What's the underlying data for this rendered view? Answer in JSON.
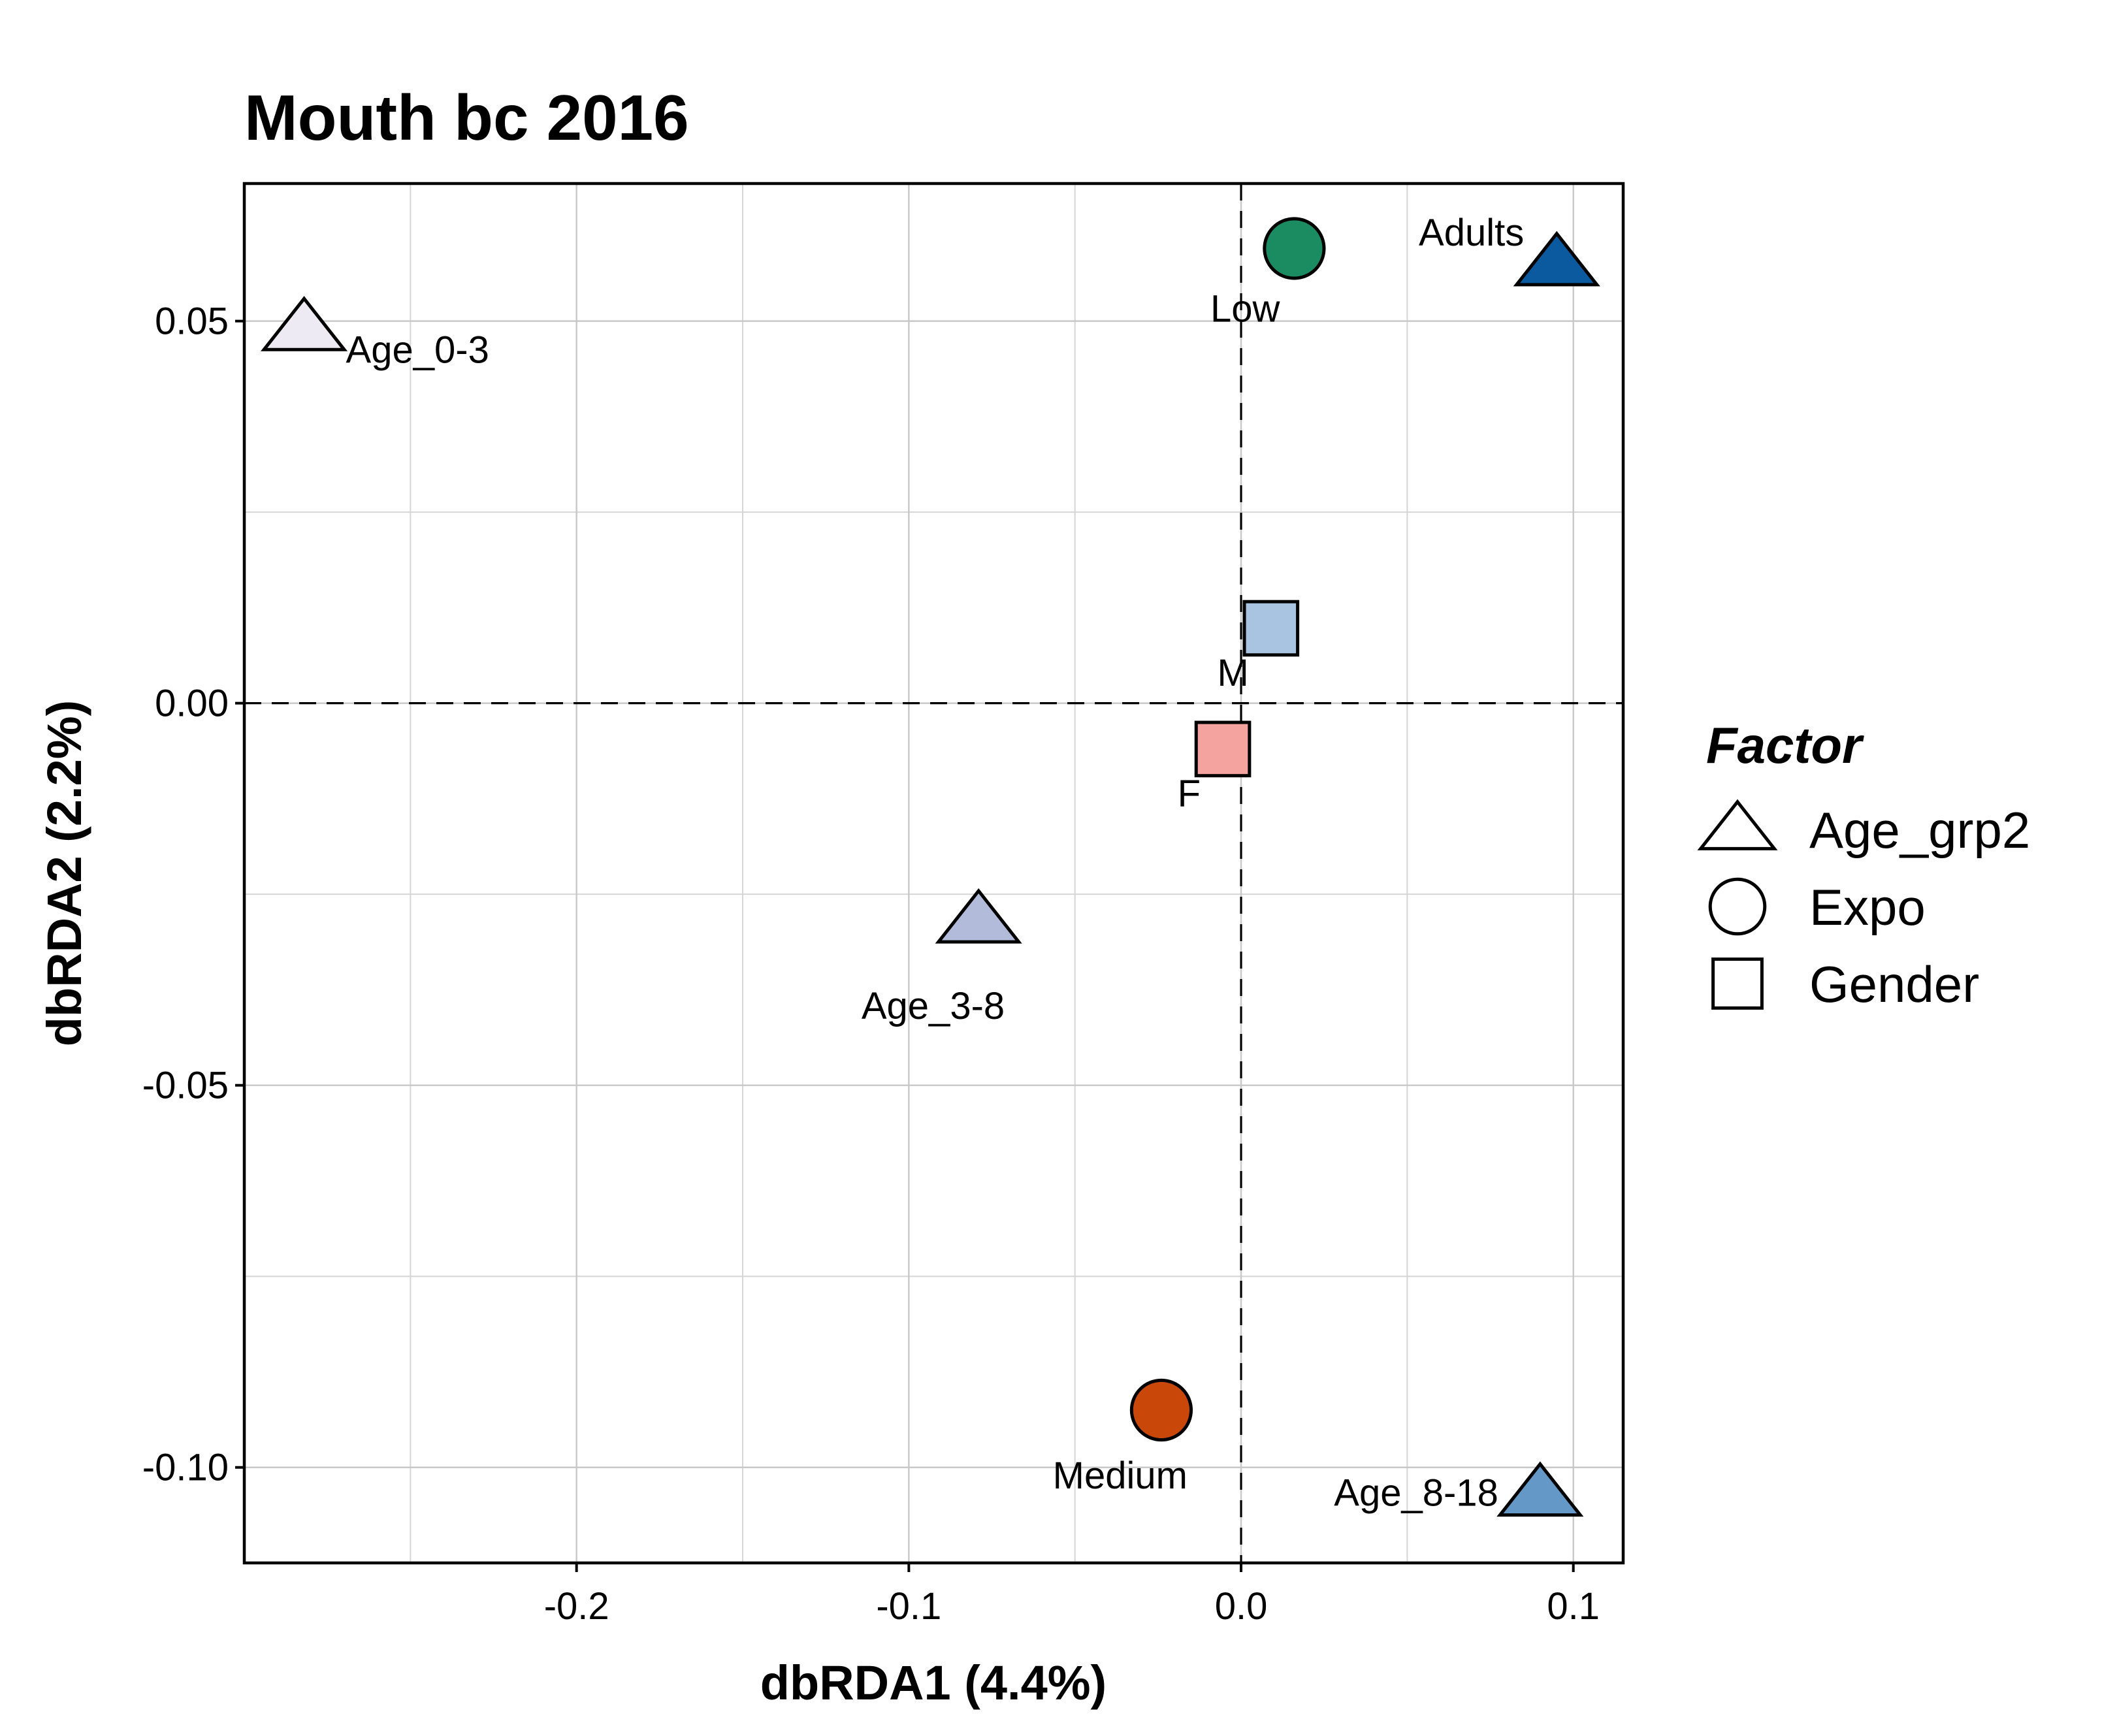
{
  "chart_data": {
    "type": "scatter",
    "title": "Mouth bc 2016",
    "xlabel": "dbRDA1 (4.4%)",
    "ylabel": "dbRDA2 (2.2%)",
    "xlim": [
      -0.3,
      0.115
    ],
    "ylim": [
      -0.1125,
      0.068
    ],
    "x_ticks": [
      {
        "value": -0.2,
        "label": "-0.2"
      },
      {
        "value": -0.1,
        "label": "-0.1"
      },
      {
        "value": 0.0,
        "label": "0.0"
      },
      {
        "value": 0.1,
        "label": "0.1"
      }
    ],
    "y_ticks": [
      {
        "value": 0.05,
        "label": "0.05"
      },
      {
        "value": 0.0,
        "label": "0.00"
      },
      {
        "value": -0.05,
        "label": "-0.05"
      },
      {
        "value": -0.1,
        "label": "-0.10"
      }
    ],
    "grid": true,
    "reference_lines": {
      "x": 0,
      "y": 0,
      "style": "dashed"
    },
    "legend": {
      "title": "Factor",
      "placement": "right",
      "entries": [
        {
          "label": "Age_grp2",
          "shape": "triangle"
        },
        {
          "label": "Expo",
          "shape": "circle"
        },
        {
          "label": "Gender",
          "shape": "square"
        }
      ]
    },
    "points": [
      {
        "label": "Age_0-3",
        "factor": "Age_grp2",
        "shape": "triangle",
        "x": -0.282,
        "y": 0.049,
        "color": "#eeeaf3",
        "label_pos": "right"
      },
      {
        "label": "Adults",
        "factor": "Age_grp2",
        "shape": "triangle",
        "x": 0.095,
        "y": 0.0575,
        "color": "#0b5aa0",
        "label_pos": "top-left"
      },
      {
        "label": "Age_3-8",
        "factor": "Age_grp2",
        "shape": "triangle",
        "x": -0.079,
        "y": -0.0285,
        "color": "#b2bcda",
        "label_pos": "bottom-left"
      },
      {
        "label": "Age_8-18",
        "factor": "Age_grp2",
        "shape": "triangle",
        "x": 0.09,
        "y": -0.1035,
        "color": "#6499c7",
        "label_pos": "left"
      },
      {
        "label": "Low",
        "factor": "Expo",
        "shape": "circle",
        "x": 0.016,
        "y": 0.0595,
        "color": "#1b8c61",
        "label_pos": "bottom-left"
      },
      {
        "label": "Medium",
        "factor": "Expo",
        "shape": "circle",
        "x": -0.024,
        "y": -0.0925,
        "color": "#c94709",
        "label_pos": "bottom-left"
      },
      {
        "label": "M",
        "factor": "Gender",
        "shape": "square",
        "x": 0.009,
        "y": 0.0098,
        "color": "#a8c4e0",
        "label_pos": "bottom-left"
      },
      {
        "label": "F",
        "factor": "Gender",
        "shape": "square",
        "x": -0.0055,
        "y": -0.006,
        "color": "#f5a39e",
        "label_pos": "bottom-left"
      }
    ]
  }
}
